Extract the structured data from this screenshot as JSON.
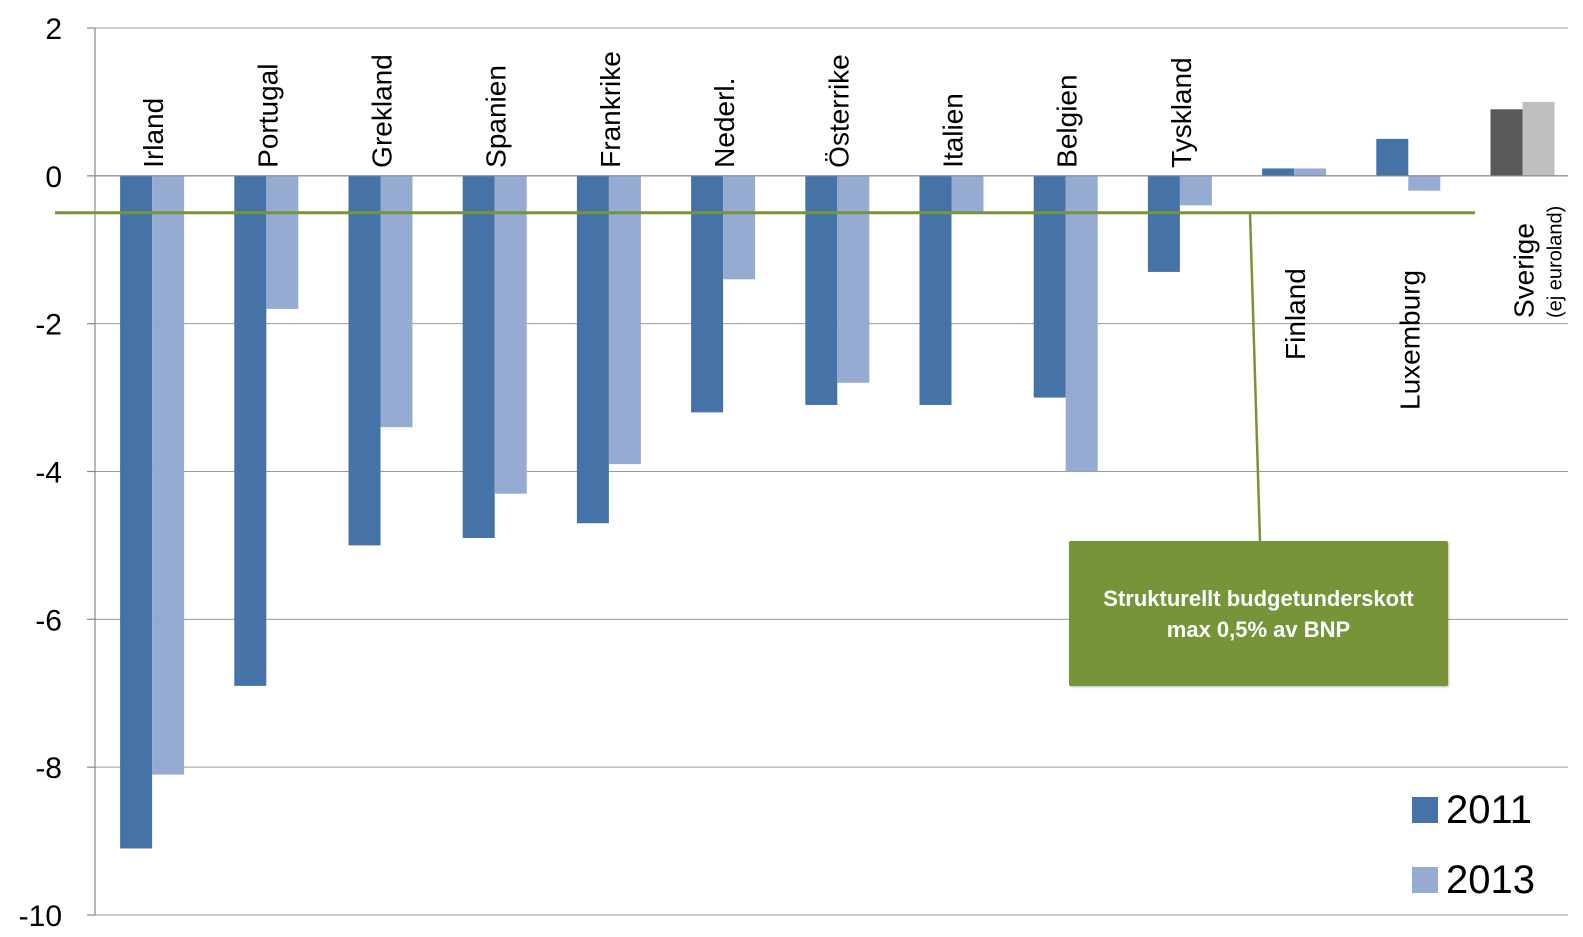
{
  "chart_data": {
    "type": "bar",
    "title": "",
    "xlabel": "",
    "ylabel": "",
    "ylim": [
      -10,
      2
    ],
    "yticks": [
      2,
      0,
      -2,
      -4,
      -6,
      -8,
      -10
    ],
    "grid": true,
    "legend_position": "bottom-right",
    "categories": [
      "Irland",
      "Portugal",
      "Grekland",
      "Spanien",
      "Frankrike",
      "Nederl.",
      "Österrike",
      "Italien",
      "Belgien",
      "Tyskland",
      "Finland",
      "Luxemburg",
      "Sverige"
    ],
    "category_notes": {
      "Sverige": "(ej euroland)"
    },
    "series": [
      {
        "name": "2011",
        "color": "#4572A7",
        "values": [
          -9.1,
          -6.9,
          -5.0,
          -4.9,
          -4.7,
          -3.2,
          -3.1,
          -3.1,
          -3.0,
          -1.3,
          0.1,
          0.5,
          0.9
        ]
      },
      {
        "name": "2013",
        "color": "#95ABD2",
        "values": [
          -8.1,
          -1.8,
          -3.4,
          -4.3,
          -3.9,
          -1.4,
          -2.8,
          -0.5,
          -4.0,
          -0.4,
          0.1,
          -0.2,
          1.0
        ]
      }
    ],
    "highlight_colors": {
      "Sverige": [
        "#595959",
        "#BFBFBF"
      ]
    },
    "reference_line": {
      "value": -0.5,
      "color": "#789438"
    },
    "annotation": "Strukturellt budgetunderskott max 0,5% av BNP"
  }
}
